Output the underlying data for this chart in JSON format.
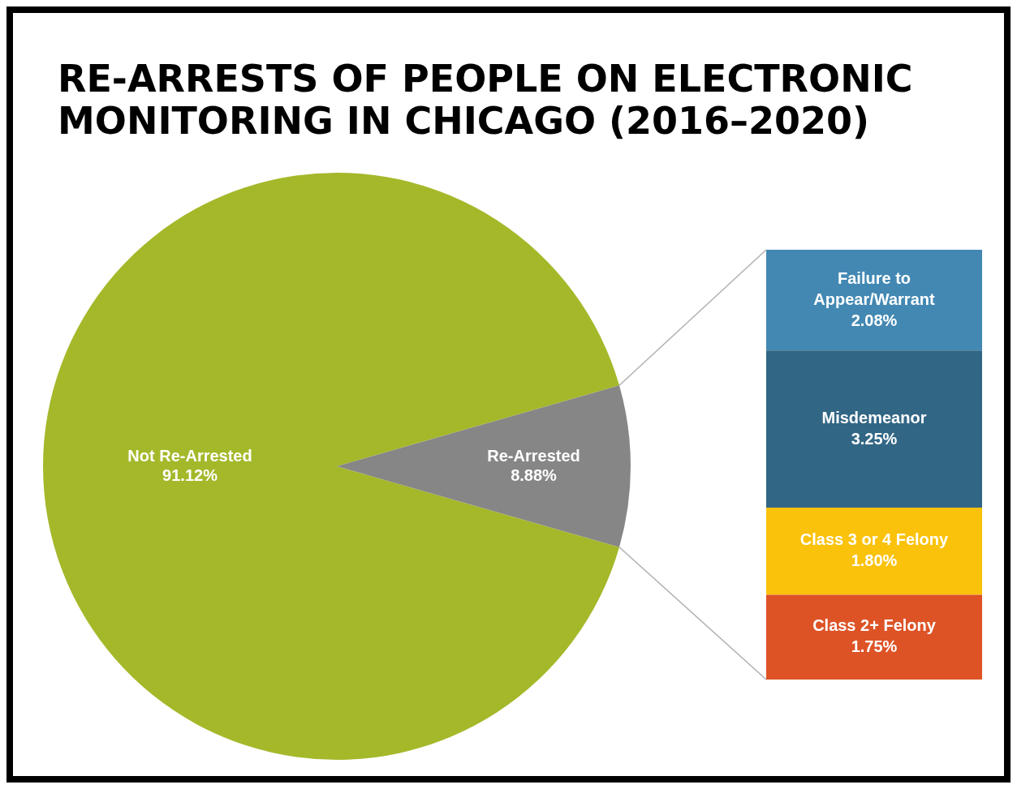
{
  "chart_data": [
    {
      "type": "pie",
      "title": "RE-ARRESTS OF PEOPLE ON ELECTRONIC MONITORING IN CHICAGO (2016–2020)",
      "categories": [
        "Not Re-Arrested",
        "Re-Arrested"
      ],
      "values": [
        91.12,
        8.88
      ],
      "colors": [
        "#a5b82a",
        "#868686"
      ],
      "value_labels": [
        "91.12%",
        "8.88%"
      ],
      "data_labels": true,
      "legend": false
    },
    {
      "type": "bar",
      "stacked": true,
      "categories": [
        null
      ],
      "data_labels": true,
      "legend": false,
      "series": [
        {
          "name": "Class 2+ Felony",
          "color": "#dd5326",
          "values": [
            1.75
          ],
          "value_labels": [
            "1.75%"
          ]
        },
        {
          "name": "Class 3 or 4 Felony",
          "color": "#fbc20c",
          "values": [
            1.8
          ],
          "value_labels": [
            "1.80%"
          ]
        },
        {
          "name": "Misdemeanor",
          "color": "#326685",
          "values": [
            3.25
          ],
          "value_labels": [
            "3.25%"
          ]
        },
        {
          "name": "Failure to Appear/Warrant",
          "color": "#4288b3",
          "values": [
            2.08
          ],
          "value_labels": [
            "2.08%"
          ]
        }
      ]
    }
  ]
}
